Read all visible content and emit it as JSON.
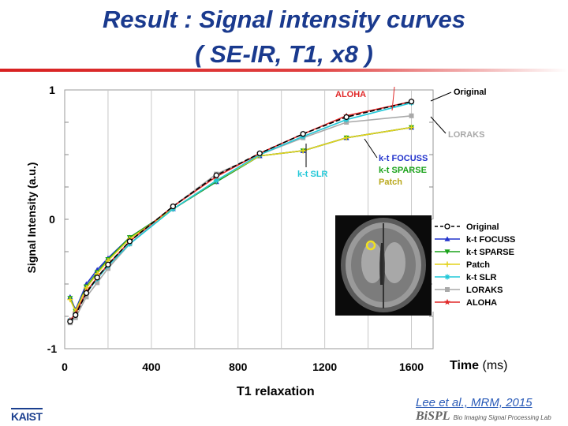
{
  "slide": {
    "title_line1": "Result : Signal intensity curves",
    "title_line2": "( SE-IR, T1, x8 )",
    "citation": "Lee et al., MRM, 2015",
    "footer_logo": "KAIST",
    "lab_logo": "BiSPL",
    "lab_name": "Bio Imaging Signal Processing Lab",
    "time_label": "Time",
    "time_unit": "(ms)"
  },
  "chart_data": {
    "type": "line",
    "xlabel": "T1 relaxation",
    "ylabel": "Signal Intensity (a.u.)",
    "xlim": [
      0,
      1700
    ],
    "ylim": [
      -1,
      1
    ],
    "xticks": [
      0,
      400,
      800,
      1200,
      1600
    ],
    "xtick_labels": [
      "0",
      "400",
      "800",
      "1200",
      "1600"
    ],
    "yticks": [
      -1,
      0,
      1
    ],
    "ytick_labels": [
      "-1",
      "0",
      "1"
    ],
    "x": [
      25,
      50,
      100,
      150,
      200,
      300,
      500,
      700,
      900,
      1100,
      1300,
      1600
    ],
    "series": [
      {
        "name": "Original",
        "color": "#000000",
        "marker": "circle-open",
        "dash": "6,3",
        "values": [
          -0.79,
          -0.74,
          -0.57,
          -0.45,
          -0.35,
          -0.17,
          0.1,
          0.34,
          0.51,
          0.66,
          0.79,
          0.91
        ]
      },
      {
        "name": "k-t FOCUSS",
        "color": "#2233cc",
        "marker": "triangle-up",
        "dash": "",
        "values": [
          -0.6,
          -0.7,
          -0.5,
          -0.39,
          -0.3,
          -0.14,
          0.08,
          0.29,
          0.49,
          0.53,
          0.63,
          0.71
        ]
      },
      {
        "name": "k-t SPARSE",
        "color": "#1aa21a",
        "marker": "triangle-down",
        "dash": "",
        "values": [
          -0.61,
          -0.71,
          -0.52,
          -0.41,
          -0.31,
          -0.14,
          0.08,
          0.29,
          0.49,
          0.53,
          0.63,
          0.71
        ]
      },
      {
        "name": "Patch",
        "color": "#e3d21c",
        "marker": "plus",
        "dash": "",
        "values": [
          -0.62,
          -0.71,
          -0.53,
          -0.42,
          -0.32,
          -0.15,
          0.08,
          0.3,
          0.49,
          0.53,
          0.63,
          0.71
        ]
      },
      {
        "name": "k-t SLR",
        "color": "#22c8d8",
        "marker": "asterisk",
        "dash": "",
        "values": [
          -0.78,
          -0.73,
          -0.57,
          -0.46,
          -0.36,
          -0.19,
          0.08,
          0.3,
          0.5,
          0.64,
          0.77,
          0.9
        ]
      },
      {
        "name": "LORAKS",
        "color": "#a9a9a9",
        "marker": "square",
        "dash": "",
        "values": [
          -0.8,
          -0.76,
          -0.6,
          -0.49,
          -0.38,
          -0.19,
          0.1,
          0.35,
          0.5,
          0.63,
          0.75,
          0.8
        ]
      },
      {
        "name": "ALOHA",
        "color": "#e02828",
        "marker": "star",
        "dash": "",
        "values": [
          -0.78,
          -0.73,
          -0.56,
          -0.45,
          -0.35,
          -0.17,
          0.1,
          0.33,
          0.51,
          0.66,
          0.8,
          0.91
        ]
      }
    ],
    "legend": [
      "Original",
      "k-t FOCUSS",
      "k-t SPARSE",
      "Patch",
      "k-t SLR",
      "LORAKS",
      "ALOHA"
    ],
    "legend_position": "bottom-right inside plot",
    "annotations": [
      {
        "text": "ALOHA",
        "color": "#e02828"
      },
      {
        "text": "Original",
        "color": "#000000"
      },
      {
        "text": "LORAKS",
        "color": "#a9a9a9"
      },
      {
        "text": "k-t FOCUSS",
        "color": "#2233cc"
      },
      {
        "text": "k-t SPARSE",
        "color": "#1aa21a"
      },
      {
        "text": "Patch",
        "color": "#b9a81c"
      },
      {
        "text": "k-t SLR",
        "color": "#22c8d8"
      }
    ]
  }
}
